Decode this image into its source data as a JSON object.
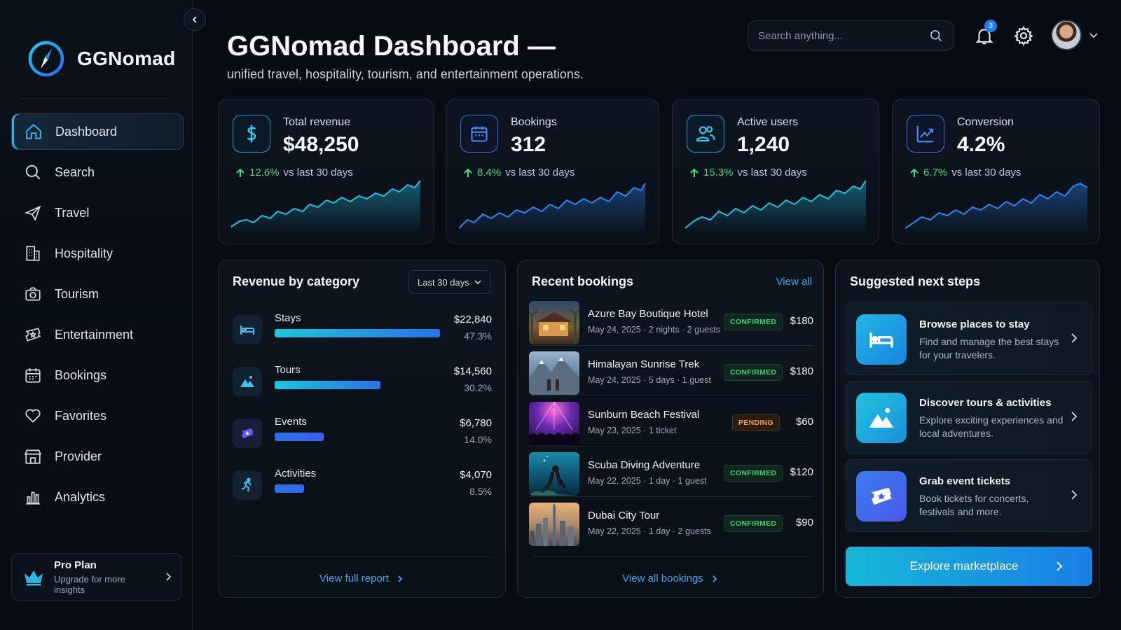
{
  "app": {
    "name": "GGNomad"
  },
  "header": {
    "title": "GGNomad Dashboard —",
    "subtitle": "unified travel, hospitality, tourism, and entertainment operations.",
    "search_placeholder": "Search anything...",
    "notification_count": "3"
  },
  "sidebar": {
    "items": [
      {
        "label": "Dashboard",
        "icon": "home-icon"
      },
      {
        "label": "Search",
        "icon": "search-icon"
      },
      {
        "label": "Travel",
        "icon": "plane-icon"
      },
      {
        "label": "Hospitality",
        "icon": "building-icon"
      },
      {
        "label": "Tourism",
        "icon": "camera-icon"
      },
      {
        "label": "Entertainment",
        "icon": "ticket-star-icon"
      },
      {
        "label": "Bookings",
        "icon": "calendar-icon"
      },
      {
        "label": "Favorites",
        "icon": "heart-icon"
      },
      {
        "label": "Provider",
        "icon": "store-icon"
      },
      {
        "label": "Analytics",
        "icon": "bar-chart-icon"
      }
    ],
    "pro_plan": {
      "title": "Pro Plan",
      "subtitle": "Upgrade for more insights"
    }
  },
  "kpis": [
    {
      "label": "Total revenue",
      "value": "$48,250",
      "change": "12.6%",
      "comparison": "vs last 30 days",
      "icon": "dollar-icon"
    },
    {
      "label": "Bookings",
      "value": "312",
      "change": "8.4%",
      "comparison": "vs last 30 days",
      "icon": "calendar-icon"
    },
    {
      "label": "Active users",
      "value": "1,240",
      "change": "15.3%",
      "comparison": "vs last 30 days",
      "icon": "users-icon"
    },
    {
      "label": "Conversion",
      "value": "4.2%",
      "change": "6.7%",
      "comparison": "vs last 30 days",
      "icon": "trend-up-icon"
    }
  ],
  "revenue": {
    "title": "Revenue by category",
    "range": "Last 30 days",
    "categories": [
      {
        "name": "Stays",
        "amount": "$22,840",
        "pct": "47.3%",
        "share": 0.473
      },
      {
        "name": "Tours",
        "amount": "$14,560",
        "pct": "30.2%",
        "share": 0.302
      },
      {
        "name": "Events",
        "amount": "$6,780",
        "pct": "14.0%",
        "share": 0.14
      },
      {
        "name": "Activities",
        "amount": "$4,070",
        "pct": "8.5%",
        "share": 0.085
      }
    ],
    "link": "View full report"
  },
  "bookings": {
    "title": "Recent bookings",
    "view_all": "View all",
    "rows": [
      {
        "name": "Azure Bay Boutique Hotel",
        "meta": "May 24, 2025 · 2 nights · 2 guests",
        "status": "CONFIRMED",
        "price": "$180"
      },
      {
        "name": "Himalayan Sunrise Trek",
        "meta": "May 24, 2025 · 5 days · 1 guest",
        "status": "CONFIRMED",
        "price": "$180"
      },
      {
        "name": "Sunburn Beach Festival",
        "meta": "May 23, 2025 · 1 ticket",
        "status": "PENDING",
        "price": "$60"
      },
      {
        "name": "Scuba Diving Adventure",
        "meta": "May 22, 2025 · 1 day · 1 guest",
        "status": "CONFIRMED",
        "price": "$120"
      },
      {
        "name": "Dubai City Tour",
        "meta": "May 22, 2025 · 1 day · 2 guests",
        "status": "CONFIRMED",
        "price": "$90"
      }
    ],
    "link": "View all bookings"
  },
  "steps": {
    "title": "Suggested next steps",
    "items": [
      {
        "title": "Browse places to stay",
        "desc": "Find and manage the best stays for your travelers."
      },
      {
        "title": "Discover tours & activities",
        "desc": "Explore exciting experiences and local adventures."
      },
      {
        "title": "Grab event tickets",
        "desc": "Book tickets for concerts, festivals and more."
      }
    ],
    "cta": "Explore marketplace"
  },
  "colors": {
    "accent": "#2fb4e8",
    "positive": "#3ddc84",
    "pending": "#f0a040",
    "background": "#070b12"
  }
}
